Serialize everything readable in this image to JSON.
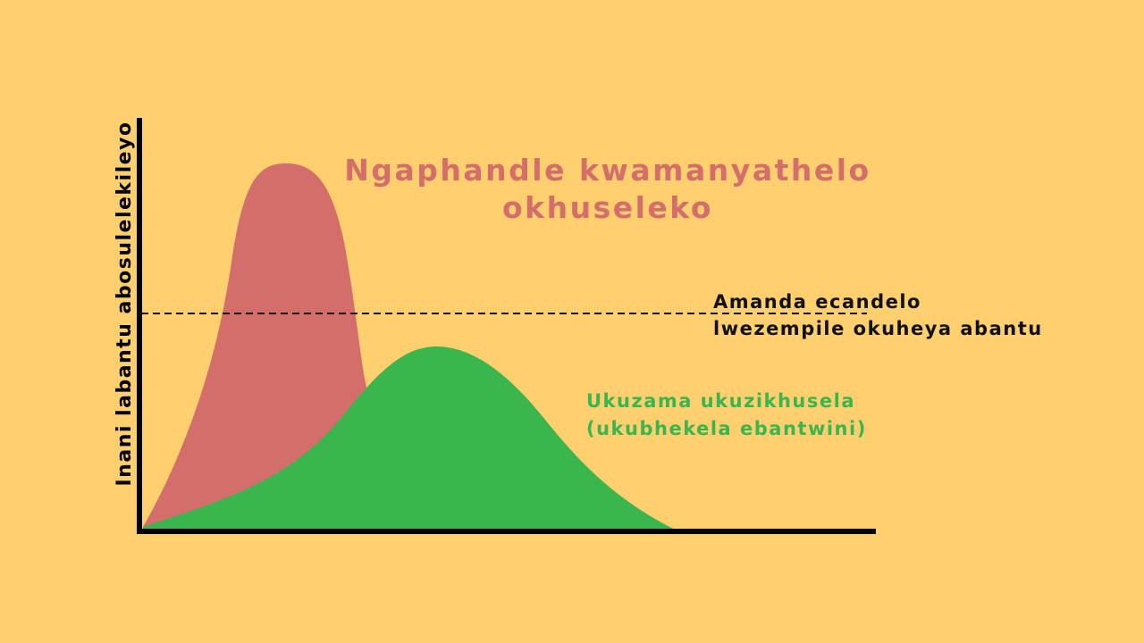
{
  "y_axis_label": "Inani labantu abosulelekileyo",
  "unprotected_curve": {
    "label_lines": [
      "Ngaphandle kwamanyathelo",
      "okhuseleko"
    ]
  },
  "threshold": {
    "label_lines": [
      "Amanda ecandelo",
      "lwezempile okuheya abantu"
    ]
  },
  "protected_curve": {
    "label_lines": [
      "Ukuzama ukuzikhusela",
      "(ukubhekela ebantwini)"
    ]
  }
}
